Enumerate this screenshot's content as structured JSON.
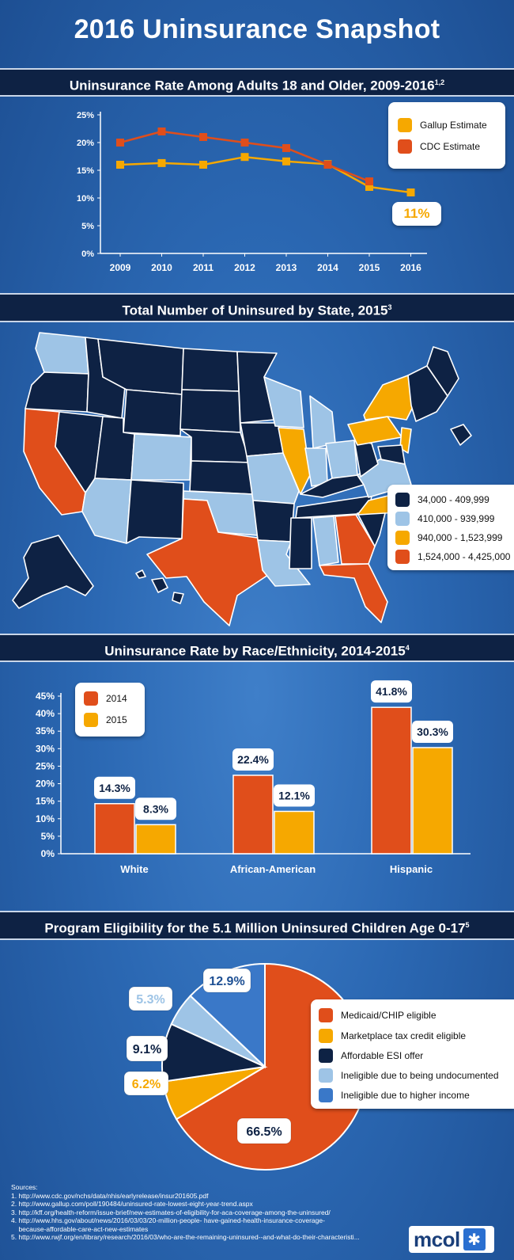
{
  "title": "2016 Uninsurance Snapshot",
  "sections": {
    "line": {
      "title": "Uninsurance Rate Among Adults 18 and Older, 2009-2016",
      "sup": "1,2"
    },
    "map": {
      "title": "Total Number of Uninsured by State, 2015",
      "sup": "3"
    },
    "race": {
      "title": "Uninsurance Rate by Race/Ethnicity, 2014-2015",
      "sup": "4"
    },
    "pie": {
      "title": "Program Eligibility for the 5.1 Million Uninsured Children Age 0-17",
      "sup": "5"
    }
  },
  "colors": {
    "orange": "#e04e1b",
    "gold": "#f6a800",
    "navy": "#0e2244",
    "light": "#9ec4e6",
    "mid": "#3a78c8"
  },
  "chart_data": [
    {
      "type": "line",
      "title": "Uninsurance Rate Among Adults 18 and Older, 2009-2016",
      "x": [
        "2009",
        "2010",
        "2011",
        "2012",
        "2013",
        "2014",
        "2015",
        "2016"
      ],
      "yticks": [
        "0%",
        "5%",
        "10%",
        "15%",
        "20%",
        "25%"
      ],
      "ylim": [
        0,
        25
      ],
      "series": [
        {
          "name": "Gallup Estimate",
          "color": "#f6a800",
          "values": [
            16.0,
            16.3,
            16.0,
            17.4,
            16.6,
            16.1,
            12.0,
            11.0
          ]
        },
        {
          "name": "CDC Estimate",
          "color": "#e04e1b",
          "values": [
            20.0,
            22.0,
            21.0,
            20.0,
            19.0,
            16.0,
            13.0,
            null
          ]
        }
      ],
      "annotation": "11%"
    },
    {
      "type": "map",
      "title": "Total Number of Uninsured by State, 2015",
      "legend": [
        {
          "label": "34,000 - 409,999",
          "color": "#0e2244"
        },
        {
          "label": "410,000 - 939,999",
          "color": "#9ec4e6"
        },
        {
          "label": "940,000 - 1,523,999",
          "color": "#f6a800"
        },
        {
          "label": "1,524,000 - 4,425,000",
          "color": "#e04e1b"
        }
      ]
    },
    {
      "type": "bar",
      "title": "Uninsurance Rate by Race/Ethnicity, 2014-2015",
      "categories": [
        "White",
        "African-American",
        "Hispanic"
      ],
      "yticks": [
        "0%",
        "5%",
        "10%",
        "15%",
        "20%",
        "25%",
        "30%",
        "35%",
        "40%",
        "45%"
      ],
      "ylim": [
        0,
        45
      ],
      "series": [
        {
          "name": "2014",
          "color": "#e04e1b",
          "values": [
            14.3,
            22.4,
            41.8
          ],
          "labels": [
            "14.3%",
            "22.4%",
            "41.8%"
          ]
        },
        {
          "name": "2015",
          "color": "#f6a800",
          "values": [
            8.3,
            12.1,
            30.3
          ],
          "labels": [
            "8.3%",
            "12.1%",
            "30.3%"
          ]
        }
      ]
    },
    {
      "type": "pie",
      "title": "Program Eligibility for the 5.1 Million Uninsured Children Age 0-17",
      "slices": [
        {
          "name": "Medicaid/CHIP eligible",
          "value": 66.5,
          "label": "66.5%",
          "color": "#e04e1b"
        },
        {
          "name": "Marketplace tax credit eligible",
          "value": 6.2,
          "label": "6.2%",
          "color": "#f6a800"
        },
        {
          "name": "Affordable ESI offer",
          "value": 9.1,
          "label": "9.1%",
          "color": "#0e2244"
        },
        {
          "name": "Ineligible due to being undocumented",
          "value": 5.3,
          "label": "5.3%",
          "color": "#9ec4e6"
        },
        {
          "name": "Ineligible due to higher income",
          "value": 12.9,
          "label": "12.9%",
          "color": "#3a78c8"
        }
      ]
    }
  ],
  "sources": {
    "heading": "Sources:",
    "items": [
      "1. http://www.cdc.gov/nchs/data/nhis/earlyrelease/insur201605.pdf",
      "2. http://www.gallup.com/poll/190484/uninsured-rate-lowest-eight-year-trend.aspx",
      "3. http://kff.org/health-reform/issue-brief/new-estimates-of-eligibility-for-aca-coverage-among-the-uninsured/",
      "4. http://www.hhs.gov/about/news/2016/03/03/20-million-people- have-gained-health-insurance-coverage-",
      "    because-affordable-care-act-new-estimates",
      "5. http://www.rwjf.org/en/library/research/2016/03/who-are-the-remaining-uninsured--and-what-do-their-characteristi..."
    ]
  },
  "logo": {
    "text": "mcol",
    "icon": "asterisk-icon"
  }
}
